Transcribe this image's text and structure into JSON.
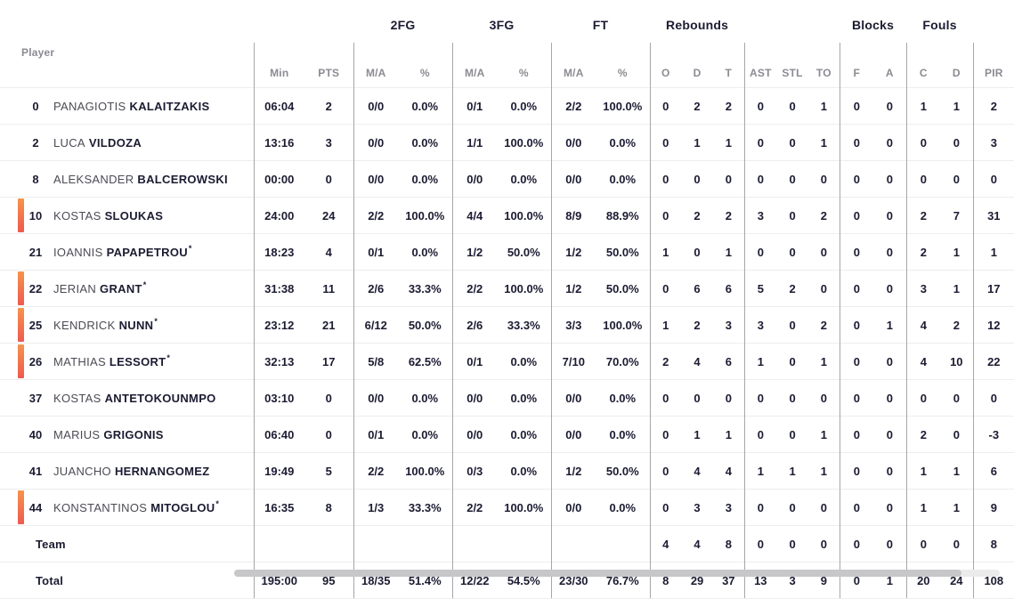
{
  "colors": {
    "accent_bar_top": "#f6934b",
    "accent_bar_bottom": "#ee5a4f",
    "dark_text": "#1b1b32",
    "muted_text": "#8b8b93",
    "first_name_text": "#4b4b54",
    "row_divider": "#ededee",
    "column_divider": "#a6a6ab",
    "scrollbar_thumb": "#c7c7c9",
    "scrollbar_track": "#ebebeb"
  },
  "legend": {
    "starter_mark": "*"
  },
  "headers": {
    "player": "Player",
    "min": "Min",
    "pts": "PTS",
    "ma": "M/A",
    "pct": "%",
    "fg2": "2FG",
    "fg3": "3FG",
    "ft": "FT",
    "rebounds": "Rebounds",
    "reb_o": "O",
    "reb_d": "D",
    "reb_t": "T",
    "ast": "AST",
    "stl": "STL",
    "to": "TO",
    "blocks": "Blocks",
    "blk_f": "F",
    "blk_a": "A",
    "fouls": "Fouls",
    "foul_c": "C",
    "foul_d": "D",
    "pir": "PIR"
  },
  "players": [
    {
      "num": "0",
      "first": "PANAGIOTIS",
      "last": "KALAITZAKIS",
      "starter": false,
      "on_court": false,
      "min": "06:04",
      "pts": "2",
      "fg2_ma": "0/0",
      "fg2_pct": "0.0%",
      "fg3_ma": "0/1",
      "fg3_pct": "0.0%",
      "ft_ma": "2/2",
      "ft_pct": "100.0%",
      "reb_o": "0",
      "reb_d": "2",
      "reb_t": "2",
      "ast": "0",
      "stl": "0",
      "to": "1",
      "blk_f": "0",
      "blk_a": "0",
      "foul_c": "1",
      "foul_d": "1",
      "pir": "2"
    },
    {
      "num": "2",
      "first": "LUCA",
      "last": "VILDOZA",
      "starter": false,
      "on_court": false,
      "min": "13:16",
      "pts": "3",
      "fg2_ma": "0/0",
      "fg2_pct": "0.0%",
      "fg3_ma": "1/1",
      "fg3_pct": "100.0%",
      "ft_ma": "0/0",
      "ft_pct": "0.0%",
      "reb_o": "0",
      "reb_d": "1",
      "reb_t": "1",
      "ast": "0",
      "stl": "0",
      "to": "1",
      "blk_f": "0",
      "blk_a": "0",
      "foul_c": "0",
      "foul_d": "0",
      "pir": "3"
    },
    {
      "num": "8",
      "first": "ALEKSANDER",
      "last": "BALCEROWSKI",
      "starter": false,
      "on_court": false,
      "min": "00:00",
      "pts": "0",
      "fg2_ma": "0/0",
      "fg2_pct": "0.0%",
      "fg3_ma": "0/0",
      "fg3_pct": "0.0%",
      "ft_ma": "0/0",
      "ft_pct": "0.0%",
      "reb_o": "0",
      "reb_d": "0",
      "reb_t": "0",
      "ast": "0",
      "stl": "0",
      "to": "0",
      "blk_f": "0",
      "blk_a": "0",
      "foul_c": "0",
      "foul_d": "0",
      "pir": "0"
    },
    {
      "num": "10",
      "first": "KOSTAS",
      "last": "SLOUKAS",
      "starter": false,
      "on_court": true,
      "min": "24:00",
      "pts": "24",
      "fg2_ma": "2/2",
      "fg2_pct": "100.0%",
      "fg3_ma": "4/4",
      "fg3_pct": "100.0%",
      "ft_ma": "8/9",
      "ft_pct": "88.9%",
      "reb_o": "0",
      "reb_d": "2",
      "reb_t": "2",
      "ast": "3",
      "stl": "0",
      "to": "2",
      "blk_f": "0",
      "blk_a": "0",
      "foul_c": "2",
      "foul_d": "7",
      "pir": "31"
    },
    {
      "num": "21",
      "first": "IOANNIS",
      "last": "PAPAPETROU",
      "starter": true,
      "on_court": false,
      "min": "18:23",
      "pts": "4",
      "fg2_ma": "0/1",
      "fg2_pct": "0.0%",
      "fg3_ma": "1/2",
      "fg3_pct": "50.0%",
      "ft_ma": "1/2",
      "ft_pct": "50.0%",
      "reb_o": "1",
      "reb_d": "0",
      "reb_t": "1",
      "ast": "0",
      "stl": "0",
      "to": "0",
      "blk_f": "0",
      "blk_a": "0",
      "foul_c": "2",
      "foul_d": "1",
      "pir": "1"
    },
    {
      "num": "22",
      "first": "JERIAN",
      "last": "GRANT",
      "starter": true,
      "on_court": true,
      "min": "31:38",
      "pts": "11",
      "fg2_ma": "2/6",
      "fg2_pct": "33.3%",
      "fg3_ma": "2/2",
      "fg3_pct": "100.0%",
      "ft_ma": "1/2",
      "ft_pct": "50.0%",
      "reb_o": "0",
      "reb_d": "6",
      "reb_t": "6",
      "ast": "5",
      "stl": "2",
      "to": "0",
      "blk_f": "0",
      "blk_a": "0",
      "foul_c": "3",
      "foul_d": "1",
      "pir": "17"
    },
    {
      "num": "25",
      "first": "KENDRICK",
      "last": "NUNN",
      "starter": true,
      "on_court": true,
      "min": "23:12",
      "pts": "21",
      "fg2_ma": "6/12",
      "fg2_pct": "50.0%",
      "fg3_ma": "2/6",
      "fg3_pct": "33.3%",
      "ft_ma": "3/3",
      "ft_pct": "100.0%",
      "reb_o": "1",
      "reb_d": "2",
      "reb_t": "3",
      "ast": "3",
      "stl": "0",
      "to": "2",
      "blk_f": "0",
      "blk_a": "1",
      "foul_c": "4",
      "foul_d": "2",
      "pir": "12"
    },
    {
      "num": "26",
      "first": "MATHIAS",
      "last": "LESSORT",
      "starter": true,
      "on_court": true,
      "min": "32:13",
      "pts": "17",
      "fg2_ma": "5/8",
      "fg2_pct": "62.5%",
      "fg3_ma": "0/1",
      "fg3_pct": "0.0%",
      "ft_ma": "7/10",
      "ft_pct": "70.0%",
      "reb_o": "2",
      "reb_d": "4",
      "reb_t": "6",
      "ast": "1",
      "stl": "0",
      "to": "1",
      "blk_f": "0",
      "blk_a": "0",
      "foul_c": "4",
      "foul_d": "10",
      "pir": "22"
    },
    {
      "num": "37",
      "first": "KOSTAS",
      "last": "ANTETOKOUNMPO",
      "starter": false,
      "on_court": false,
      "min": "03:10",
      "pts": "0",
      "fg2_ma": "0/0",
      "fg2_pct": "0.0%",
      "fg3_ma": "0/0",
      "fg3_pct": "0.0%",
      "ft_ma": "0/0",
      "ft_pct": "0.0%",
      "reb_o": "0",
      "reb_d": "0",
      "reb_t": "0",
      "ast": "0",
      "stl": "0",
      "to": "0",
      "blk_f": "0",
      "blk_a": "0",
      "foul_c": "0",
      "foul_d": "0",
      "pir": "0"
    },
    {
      "num": "40",
      "first": "MARIUS",
      "last": "GRIGONIS",
      "starter": false,
      "on_court": false,
      "min": "06:40",
      "pts": "0",
      "fg2_ma": "0/1",
      "fg2_pct": "0.0%",
      "fg3_ma": "0/0",
      "fg3_pct": "0.0%",
      "ft_ma": "0/0",
      "ft_pct": "0.0%",
      "reb_o": "0",
      "reb_d": "1",
      "reb_t": "1",
      "ast": "0",
      "stl": "0",
      "to": "1",
      "blk_f": "0",
      "blk_a": "0",
      "foul_c": "2",
      "foul_d": "0",
      "pir": "-3"
    },
    {
      "num": "41",
      "first": "JUANCHO",
      "last": "HERNANGOMEZ",
      "starter": false,
      "on_court": false,
      "min": "19:49",
      "pts": "5",
      "fg2_ma": "2/2",
      "fg2_pct": "100.0%",
      "fg3_ma": "0/3",
      "fg3_pct": "0.0%",
      "ft_ma": "1/2",
      "ft_pct": "50.0%",
      "reb_o": "0",
      "reb_d": "4",
      "reb_t": "4",
      "ast": "1",
      "stl": "1",
      "to": "1",
      "blk_f": "0",
      "blk_a": "0",
      "foul_c": "1",
      "foul_d": "1",
      "pir": "6"
    },
    {
      "num": "44",
      "first": "KONSTANTINOS",
      "last": "MITOGLOU",
      "starter": true,
      "on_court": true,
      "min": "16:35",
      "pts": "8",
      "fg2_ma": "1/3",
      "fg2_pct": "33.3%",
      "fg3_ma": "2/2",
      "fg3_pct": "100.0%",
      "ft_ma": "0/0",
      "ft_pct": "0.0%",
      "reb_o": "0",
      "reb_d": "3",
      "reb_t": "3",
      "ast": "0",
      "stl": "0",
      "to": "0",
      "blk_f": "0",
      "blk_a": "0",
      "foul_c": "1",
      "foul_d": "1",
      "pir": "9"
    }
  ],
  "team_row": {
    "label": "Team",
    "min": "",
    "pts": "",
    "fg2_ma": "",
    "fg2_pct": "",
    "fg3_ma": "",
    "fg3_pct": "",
    "ft_ma": "",
    "ft_pct": "",
    "reb_o": "4",
    "reb_d": "4",
    "reb_t": "8",
    "ast": "0",
    "stl": "0",
    "to": "0",
    "blk_f": "0",
    "blk_a": "0",
    "foul_c": "0",
    "foul_d": "0",
    "pir": "8"
  },
  "total_row": {
    "label": "Total",
    "min": "195:00",
    "pts": "95",
    "fg2_ma": "18/35",
    "fg2_pct": "51.4%",
    "fg3_ma": "12/22",
    "fg3_pct": "54.5%",
    "ft_ma": "23/30",
    "ft_pct": "76.7%",
    "reb_o": "8",
    "reb_d": "29",
    "reb_t": "37",
    "ast": "13",
    "stl": "3",
    "to": "9",
    "blk_f": "0",
    "blk_a": "1",
    "foul_c": "20",
    "foul_d": "24",
    "pir": "108"
  }
}
